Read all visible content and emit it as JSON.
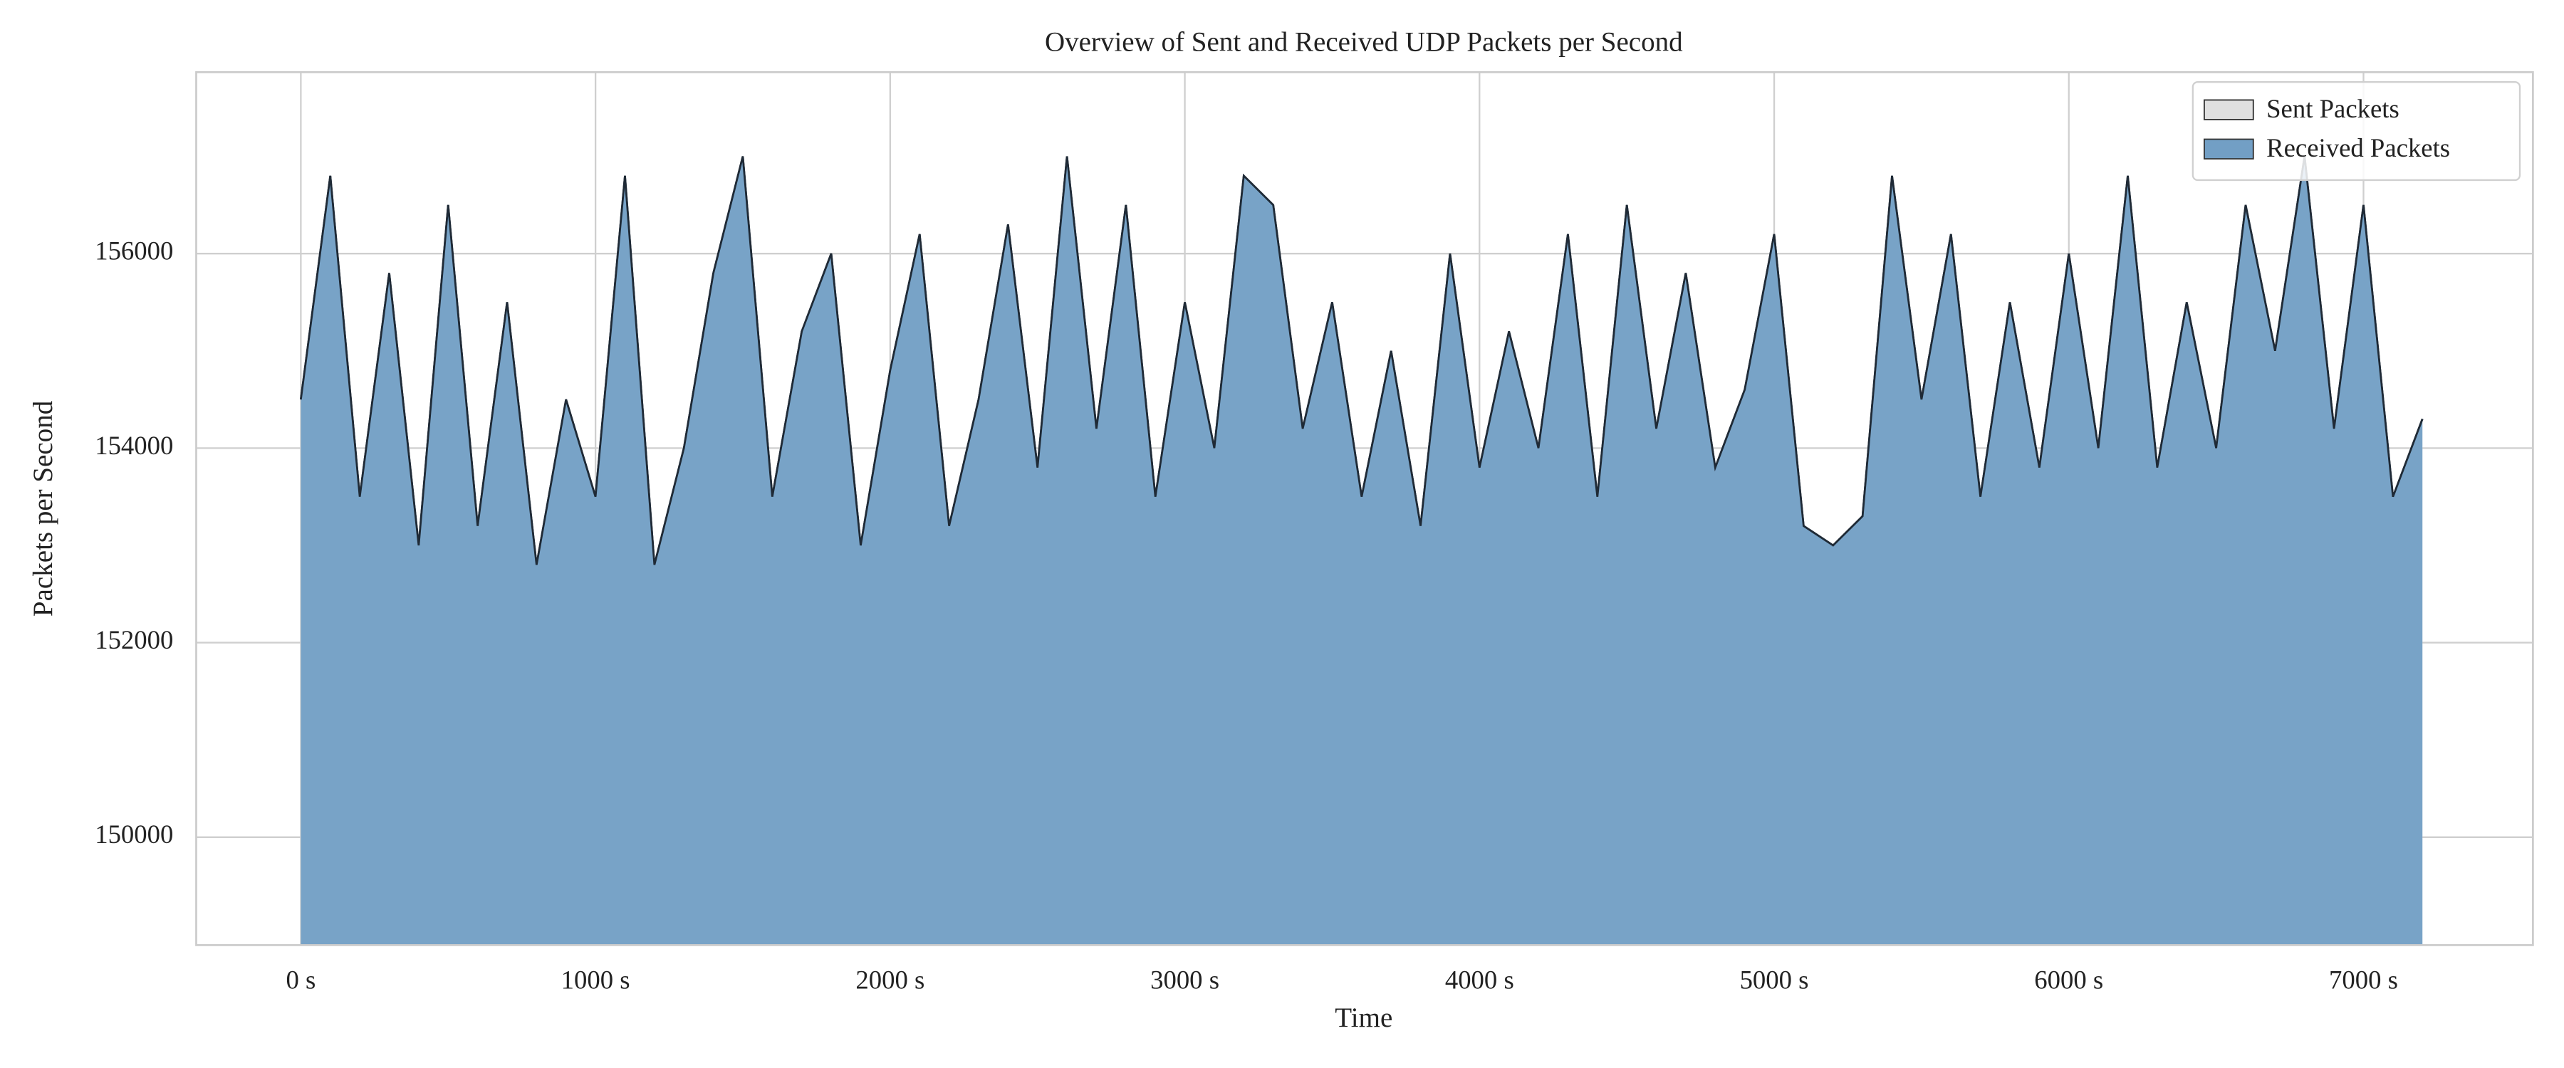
{
  "chart_data": {
    "type": "area",
    "title": "Overview of Sent and Received UDP Packets per Second",
    "xlabel": "Time",
    "ylabel": "Packets per Second",
    "x": [
      0,
      100,
      200,
      300,
      400,
      500,
      600,
      700,
      800,
      900,
      1000,
      1100,
      1200,
      1300,
      1400,
      1500,
      1600,
      1700,
      1800,
      1900,
      2000,
      2100,
      2200,
      2300,
      2400,
      2500,
      2600,
      2700,
      2800,
      2900,
      3000,
      3100,
      3200,
      3300,
      3400,
      3500,
      3600,
      3700,
      3800,
      3900,
      4000,
      4100,
      4200,
      4300,
      4400,
      4500,
      4600,
      4700,
      4800,
      4900,
      5000,
      5100,
      5200,
      5300,
      5400,
      5500,
      5600,
      5700,
      5800,
      5900,
      6000,
      6100,
      6200,
      6300,
      6400,
      6500,
      6600,
      6700,
      6800,
      6900,
      7000,
      7100,
      7200
    ],
    "series": [
      {
        "name": "Sent Packets",
        "color": "#e0e0e0",
        "values": [
          154500,
          156800,
          153500,
          155800,
          153000,
          156500,
          153200,
          155500,
          152800,
          154500,
          153500,
          156800,
          152800,
          154000,
          155800,
          157000,
          153500,
          155200,
          156000,
          153000,
          154800,
          156200,
          153200,
          154500,
          156300,
          153800,
          157000,
          154200,
          156500,
          153500,
          155500,
          154000,
          156800,
          156500,
          154200,
          155500,
          153500,
          155000,
          153200,
          156000,
          153800,
          155200,
          154000,
          156200,
          153500,
          156500,
          154200,
          155800,
          153800,
          154600,
          156200,
          153200,
          153000,
          153300,
          156800,
          154500,
          156200,
          153500,
          155500,
          153800,
          156000,
          154000,
          156800,
          153800,
          155500,
          154000,
          156500,
          155000,
          157000,
          154200,
          156500,
          153500,
          154300
        ]
      },
      {
        "name": "Received Packets",
        "color": "#729fc5",
        "values": [
          154500,
          156800,
          153500,
          155800,
          153000,
          156500,
          153200,
          155500,
          152800,
          154500,
          153500,
          156800,
          152800,
          154000,
          155800,
          157000,
          153500,
          155200,
          156000,
          153000,
          154800,
          156200,
          153200,
          154500,
          156300,
          153800,
          157000,
          154200,
          156500,
          153500,
          155500,
          154000,
          156800,
          156500,
          154200,
          155500,
          153500,
          155000,
          153200,
          156000,
          153800,
          155200,
          154000,
          156200,
          153500,
          156500,
          154200,
          155800,
          153800,
          154600,
          156200,
          153200,
          153000,
          153300,
          156800,
          154500,
          156200,
          153500,
          155500,
          153800,
          156000,
          154000,
          156800,
          153800,
          155500,
          154000,
          156500,
          155000,
          157000,
          154200,
          156500,
          153500,
          154300
        ]
      }
    ],
    "line_color": "#1f2a36",
    "xlim": [
      -355,
      7575
    ],
    "xticks": [
      {
        "value": 0,
        "label": "0 s"
      },
      {
        "value": 1000,
        "label": "1000 s"
      },
      {
        "value": 2000,
        "label": "2000 s"
      },
      {
        "value": 3000,
        "label": "3000 s"
      },
      {
        "value": 4000,
        "label": "4000 s"
      },
      {
        "value": 5000,
        "label": "5000 s"
      },
      {
        "value": 6000,
        "label": "6000 s"
      },
      {
        "value": 7000,
        "label": "7000 s"
      }
    ],
    "ylim": [
      148890,
      157865
    ],
    "yticks": [
      150000,
      152000,
      154000,
      156000
    ],
    "grid": true,
    "legend": "upper right"
  }
}
